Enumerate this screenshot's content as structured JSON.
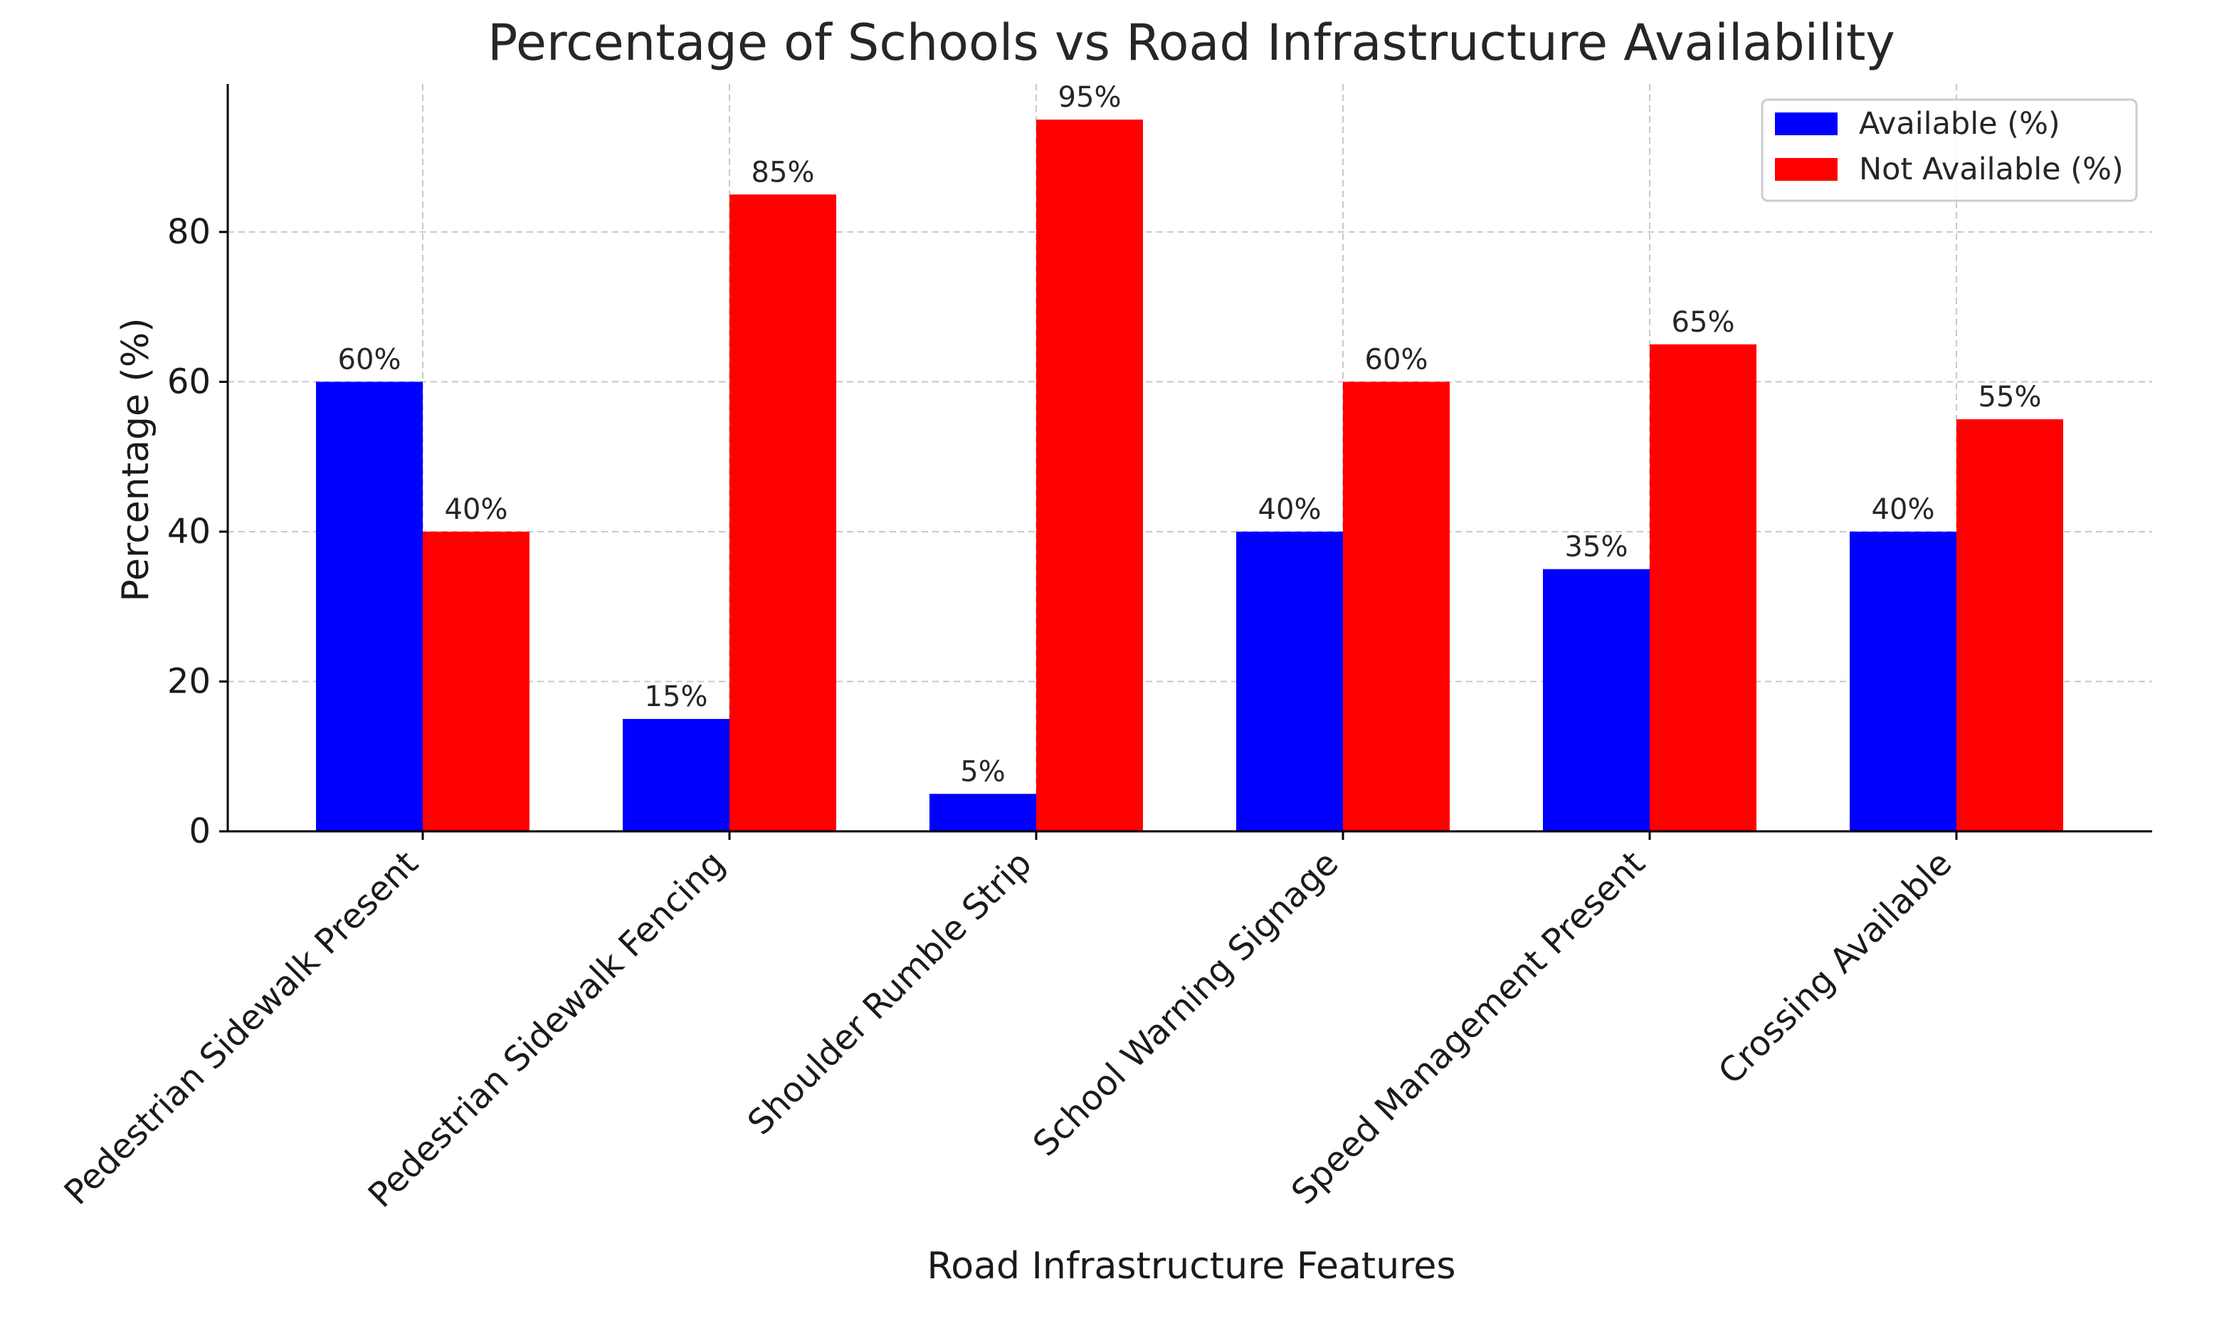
{
  "chart_data": {
    "type": "bar",
    "title": "Percentage of Schools vs Road Infrastructure Availability",
    "xlabel": "Road Infrastructure Features",
    "ylabel": "Percentage (%)",
    "categories": [
      "Pedestrian Sidewalk Present",
      "Pedestrian Sidewalk Fencing",
      "Shoulder Rumble Strip",
      "School Warning Signage",
      "Speed Management Present",
      "Crossing Available"
    ],
    "series": [
      {
        "name": "Available (%)",
        "color": "#0000ff",
        "values": [
          60,
          15,
          5,
          40,
          35,
          40
        ],
        "labels": [
          "60%",
          "15%",
          "5%",
          "40%",
          "35%",
          "40%"
        ]
      },
      {
        "name": "Not Available (%)",
        "color": "#ff0000",
        "values": [
          40,
          85,
          95,
          60,
          65,
          55
        ],
        "labels": [
          "40%",
          "85%",
          "95%",
          "60%",
          "65%",
          "55%"
        ]
      }
    ],
    "yticks": [
      0,
      20,
      40,
      60,
      80
    ],
    "ytick_labels": [
      "0",
      "20",
      "40",
      "60",
      "80"
    ],
    "ylim": [
      0,
      99.75
    ],
    "grid": true,
    "legend_position": "top-right"
  }
}
